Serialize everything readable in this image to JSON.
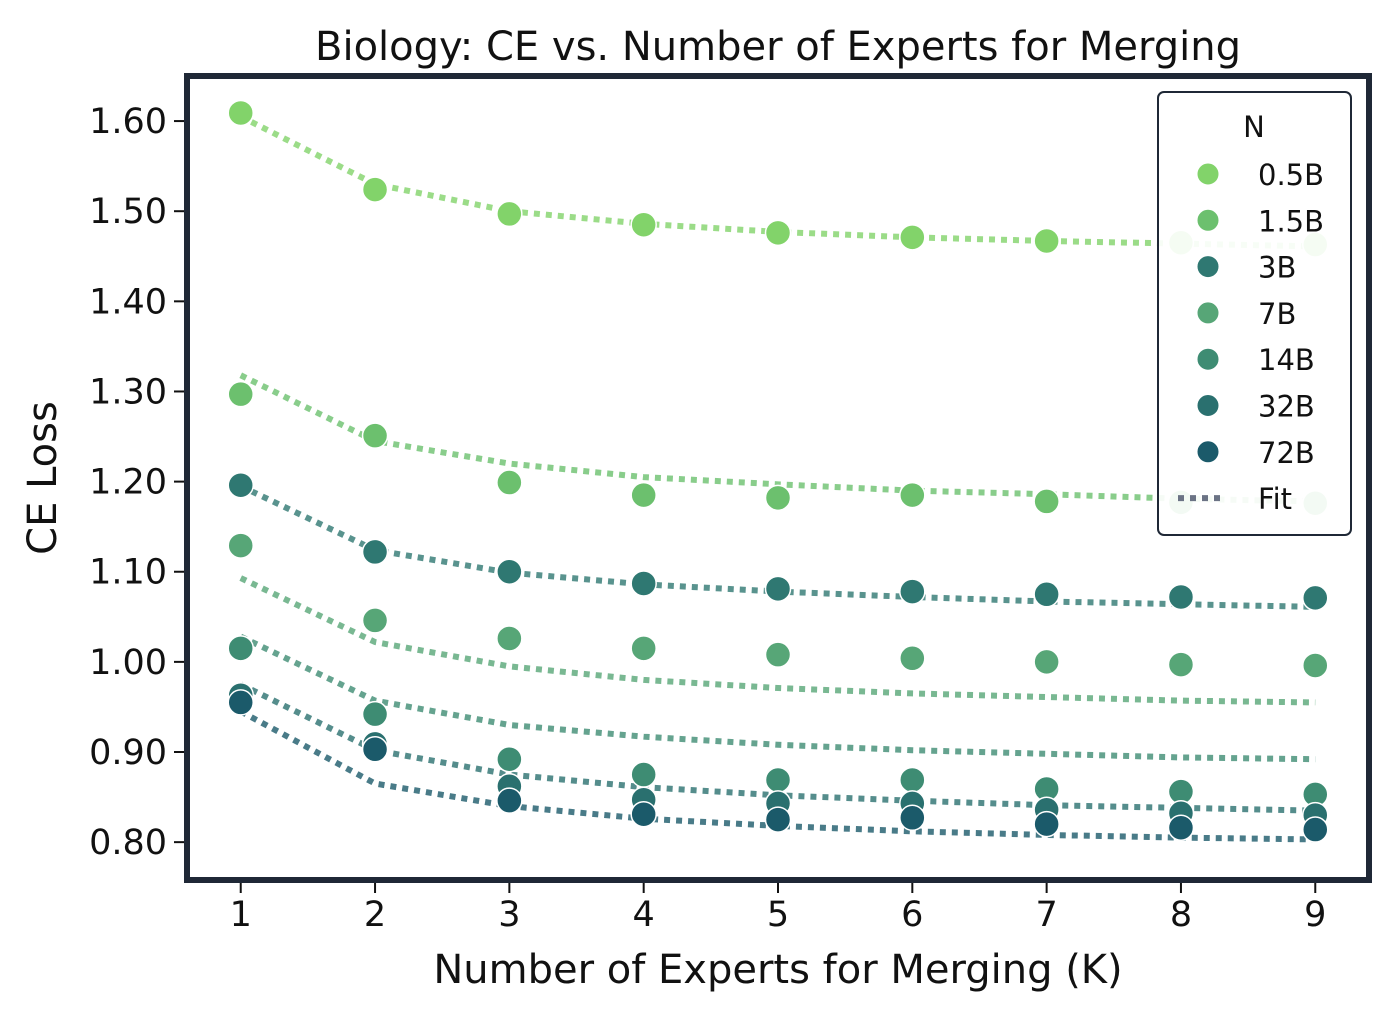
{
  "chart_data": {
    "type": "scatter",
    "title": "Biology: CE vs. Number of Experts for Merging",
    "xlabel": "Number of Experts for Merging (K)",
    "ylabel": "CE Loss",
    "xlim": [
      0.6,
      9.4
    ],
    "ylim": [
      0.758,
      1.65
    ],
    "x": [
      1,
      2,
      3,
      4,
      5,
      6,
      7,
      8,
      9
    ],
    "xticks": [
      "1",
      "2",
      "3",
      "4",
      "5",
      "6",
      "7",
      "8",
      "9"
    ],
    "yticks": [
      {
        "value": 0.8,
        "label": "0.80"
      },
      {
        "value": 0.9,
        "label": "0.90"
      },
      {
        "value": 1.0,
        "label": "1.00"
      },
      {
        "value": 1.1,
        "label": "1.10"
      },
      {
        "value": 1.2,
        "label": "1.20"
      },
      {
        "value": 1.3,
        "label": "1.30"
      },
      {
        "value": 1.4,
        "label": "1.40"
      },
      {
        "value": 1.5,
        "label": "1.50"
      },
      {
        "value": 1.6,
        "label": "1.60"
      }
    ],
    "legend": {
      "title": "N",
      "position": "top-right",
      "fit_label": "Fit",
      "fit_color": "#6b7385"
    },
    "series": [
      {
        "name": "0.5B",
        "color": "#82d36a",
        "values": [
          1.609,
          1.524,
          1.497,
          1.485,
          1.476,
          1.471,
          1.467,
          1.465,
          1.463
        ],
        "fit": [
          1.605,
          1.53,
          1.5,
          1.486,
          1.477,
          1.471,
          1.467,
          1.464,
          1.461
        ]
      },
      {
        "name": "1.5B",
        "color": "#6cc06e",
        "values": [
          1.297,
          1.251,
          1.199,
          1.185,
          1.182,
          1.185,
          1.178,
          1.177,
          1.176
        ],
        "fit": [
          1.318,
          1.245,
          1.22,
          1.205,
          1.197,
          1.19,
          1.186,
          1.181,
          1.178
        ]
      },
      {
        "name": "3B",
        "color": "#2f7872",
        "values": [
          1.196,
          1.122,
          1.1,
          1.087,
          1.081,
          1.078,
          1.075,
          1.072,
          1.071
        ],
        "fit": [
          1.195,
          1.124,
          1.099,
          1.086,
          1.078,
          1.072,
          1.067,
          1.064,
          1.061
        ]
      },
      {
        "name": "7B",
        "color": "#57a677",
        "values": [
          1.129,
          1.046,
          1.026,
          1.015,
          1.008,
          1.004,
          1.0,
          0.997,
          0.996
        ],
        "fit": [
          1.093,
          1.022,
          0.995,
          0.98,
          0.971,
          0.965,
          0.961,
          0.957,
          0.955
        ]
      },
      {
        "name": "14B",
        "color": "#3e8c73",
        "values": [
          1.015,
          0.942,
          0.892,
          0.875,
          0.869,
          0.869,
          0.859,
          0.856,
          0.853
        ],
        "fit": [
          1.028,
          0.957,
          0.93,
          0.917,
          0.908,
          0.902,
          0.898,
          0.894,
          0.892
        ]
      },
      {
        "name": "32B",
        "color": "#2a706f",
        "values": [
          0.963,
          0.909,
          0.862,
          0.847,
          0.843,
          0.843,
          0.836,
          0.832,
          0.83
        ],
        "fit": [
          0.975,
          0.902,
          0.875,
          0.861,
          0.852,
          0.846,
          0.841,
          0.838,
          0.835
        ]
      },
      {
        "name": "72B",
        "color": "#1b5a6a",
        "values": [
          0.955,
          0.903,
          0.846,
          0.831,
          0.825,
          0.827,
          0.82,
          0.816,
          0.814
        ],
        "fit": [
          0.945,
          0.865,
          0.84,
          0.826,
          0.818,
          0.812,
          0.808,
          0.805,
          0.803
        ]
      }
    ]
  }
}
